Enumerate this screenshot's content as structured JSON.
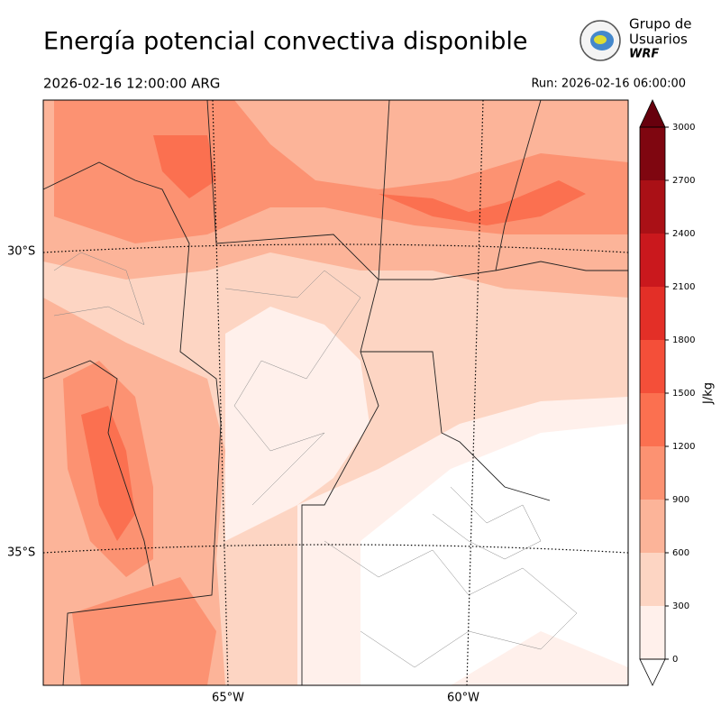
{
  "header": {
    "title": "Energía potencial convectiva disponible",
    "valid_time": "2026-02-16 12:00:00 ARG",
    "run": "Run: 2026-02-16 06:00:00",
    "logo": [
      "Grupo de",
      "Usuarios",
      "WRF"
    ]
  },
  "map": {
    "lat_labels": [
      "30°S",
      "35°S"
    ],
    "lon_labels": [
      "65°W",
      "60°W"
    ]
  },
  "colorbar": {
    "label": "J/kg",
    "ticks": [
      0,
      300,
      600,
      900,
      1200,
      1500,
      1800,
      2100,
      2400,
      2700,
      3000
    ],
    "colors": [
      "#fff0eb",
      "#fdd5c3",
      "#fcb499",
      "#fc9272",
      "#fb7050",
      "#f44f39",
      "#e32f27",
      "#ca181d",
      "#aa1016",
      "#7f0610"
    ],
    "over_color": "#67000d",
    "under_color": "#ffffff"
  }
}
